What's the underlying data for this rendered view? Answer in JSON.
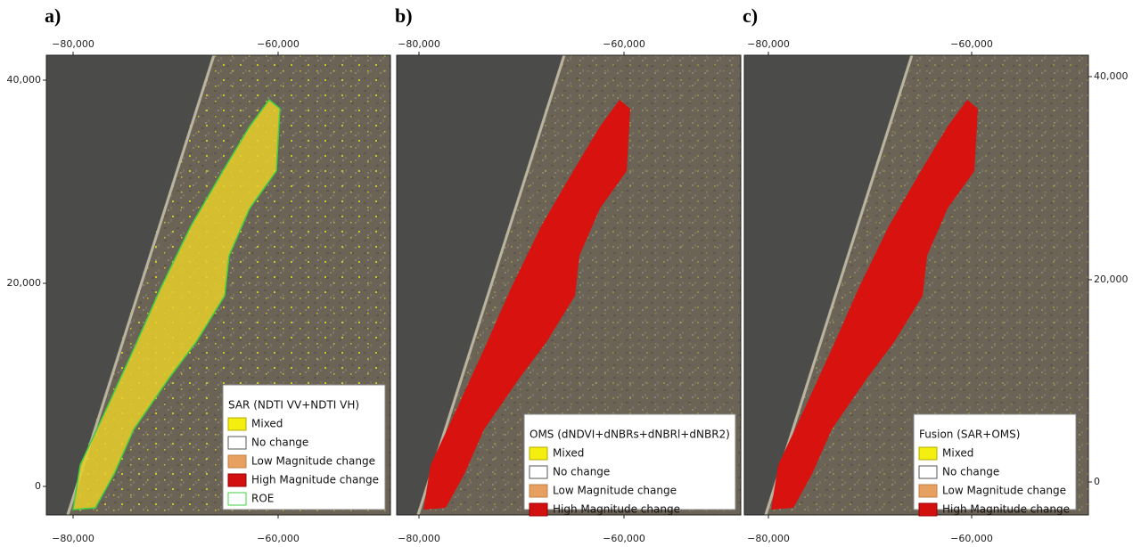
{
  "panels": [
    {
      "label": "a)",
      "xticks_top": [
        "−80,000",
        "−60,000"
      ],
      "xticks_bottom": [
        "−80,000",
        "−60,000"
      ],
      "yticks": [
        "40,000",
        "20,000",
        "0"
      ],
      "legend": {
        "title": "SAR (NDTI VV+NDTI VH)",
        "items": [
          "Mixed",
          "No change",
          "Low Magnitude change",
          "High Magnitude change",
          "ROE"
        ]
      }
    },
    {
      "label": "b)",
      "xticks_top": [
        "−80,000",
        "−60,000"
      ],
      "xticks_bottom": [
        "−80,000",
        "−60,000"
      ],
      "legend": {
        "title": "OMS (dNDVI+dNBRs+dNBRl+dNBR2)",
        "items": [
          "Mixed",
          "No change",
          "Low Magnitude change",
          "High Magnitude change"
        ]
      }
    },
    {
      "label": "c)",
      "xticks_top": [
        "−80,000",
        "−60,000"
      ],
      "xticks_bottom": [
        "−80,000",
        "−60,000"
      ],
      "yticks": [
        "40,000",
        "20,000",
        "0"
      ],
      "legend": {
        "title": "Fusion (SAR+OMS)",
        "items": [
          "Mixed",
          "No change",
          "Low Magnitude change",
          "High Magnitude change"
        ]
      }
    }
  ]
}
